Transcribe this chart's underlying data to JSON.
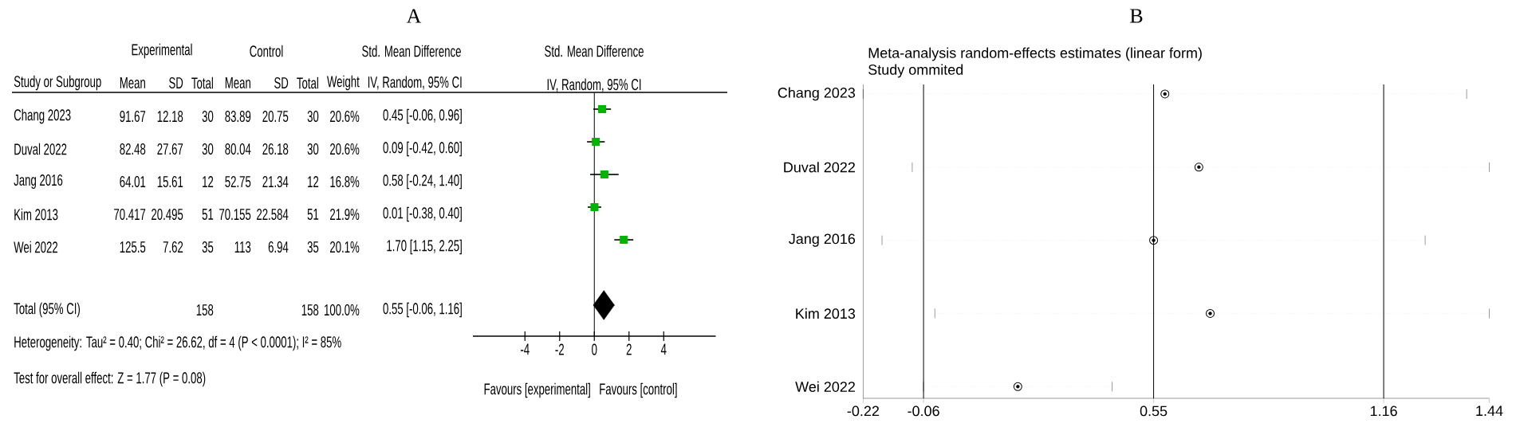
{
  "chart_data": [
    {
      "type": "other",
      "title": "A",
      "annotations": [
        "Experimental",
        "Control",
        "Std. Mean Difference",
        "Study or Subgroup",
        "Mean",
        "SD",
        "Total",
        "Mean",
        "SD",
        "Total",
        "Weight",
        "IV, Random, 95% CI",
        "Chang 2023",
        "91.67",
        "12.18",
        "30",
        "83.89",
        "20.75",
        "30",
        "20.6%",
        "0.45 [-0.06, 0.96]",
        "Duval 2022",
        "82.48",
        "27.67",
        "30",
        "80.04",
        "26.18",
        "30",
        "20.6%",
        "0.09 [-0.42, 0.60]",
        "Jang 2016",
        "64.01",
        "15.61",
        "12",
        "52.75",
        "21.34",
        "12",
        "16.8%",
        "0.58 [-0.24, 1.40]",
        "Kim 2013",
        "70.417",
        "20.495",
        "51",
        "70.155",
        "22.584",
        "51",
        "21.9%",
        "0.01 [-0.38, 0.40]",
        "Wei 2022",
        "125.5",
        "7.62",
        "35",
        "113",
        "6.94",
        "35",
        "20.1%",
        "1.70 [1.15, 2.25]",
        "Total (95% CI)",
        "158",
        "158",
        "100.0%",
        "0.55 [-0.06, 1.16]",
        "Heterogeneity: Tau² = 0.40; Chi² = 26.62, df = 4 (P < 0.0001); I² = 85%",
        "Test for overall effect: Z = 1.77 (P = 0.08)"
      ]
    },
    {
      "type": "scatter",
      "orientation": "horizontal",
      "title": "Std. Mean Difference",
      "subtitle": "IV, Random, 95% CI",
      "categories": [
        null,
        null,
        null,
        null,
        null,
        null,
        null
      ],
      "series": [
        {
          "color": "#00b400",
          "marker": "square",
          "values": [
            0.45,
            0.09,
            0.58,
            0.01,
            1.7,
            null,
            null
          ],
          "errors": [
            [
              -0.06,
              0.96
            ],
            [
              -0.42,
              0.6
            ],
            [
              -0.24,
              1.4
            ],
            [
              -0.38,
              0.4
            ],
            [
              1.15,
              2.25
            ],
            null,
            null
          ]
        },
        {
          "color": "#000000",
          "marker": "diamond",
          "values": [
            null,
            null,
            null,
            null,
            null,
            null,
            0.55
          ],
          "errors": [
            null,
            null,
            null,
            null,
            null,
            null,
            [
              -0.06,
              1.16
            ]
          ]
        }
      ],
      "xlim": [
        -7,
        7
      ],
      "xticks": [
        -4,
        -2,
        0,
        2,
        4
      ],
      "tick_labels": "x",
      "ref_lines": [
        {
          "axis": "x",
          "value": 0
        }
      ],
      "annotations": [
        "Favours [experimental]",
        "Favours [control]"
      ]
    },
    {
      "type": "scatter",
      "orientation": "horizontal",
      "title": "Meta-analysis random-effects estimates (linear form)",
      "subtitle": "Study ommited",
      "categories": [
        "Chang 2023",
        "Duval 2022",
        "Jang 2016",
        "Kim 2013",
        "Wei 2022"
      ],
      "values": [
        0.58,
        0.67,
        0.55,
        0.7,
        0.19
      ],
      "errors": [
        [
          -0.22,
          1.38
        ],
        [
          -0.09,
          1.44
        ],
        [
          -0.17,
          1.27
        ],
        [
          -0.03,
          1.44
        ],
        [
          -0.06,
          0.44
        ]
      ],
      "color": "#000000",
      "marker": "circle",
      "xlim": [
        -0.22,
        1.44
      ],
      "xticks": [
        -0.22,
        -0.06,
        0.55,
        1.16,
        1.44
      ],
      "ref_lines": [
        {
          "axis": "x",
          "value": -0.06
        },
        {
          "axis": "x",
          "value": 0.55
        },
        {
          "axis": "x",
          "value": 1.16
        }
      ],
      "annotations": [
        "B"
      ]
    }
  ]
}
